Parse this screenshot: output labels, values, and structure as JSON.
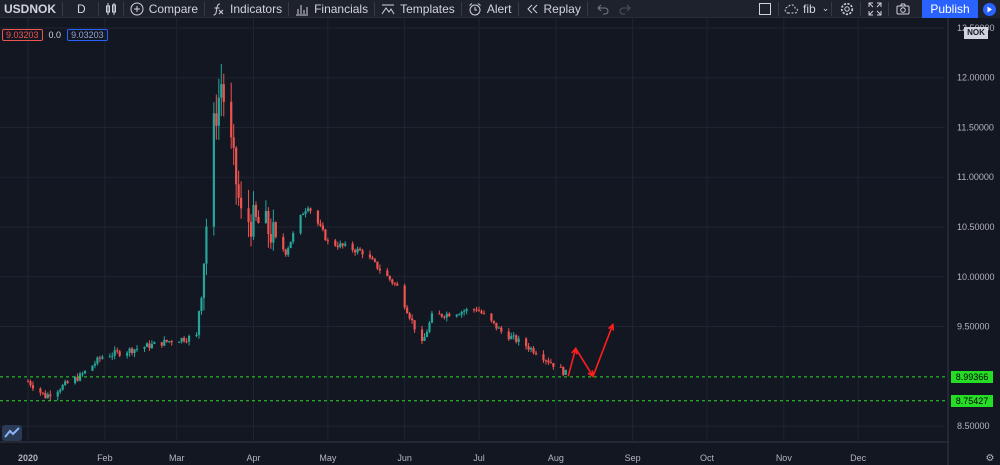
{
  "toolbar": {
    "symbol": "USDNOK",
    "interval": "D",
    "compare": "Compare",
    "indicators": "Indicators",
    "financials": "Financials",
    "templates": "Templates",
    "alert": "Alert",
    "replay": "Replay",
    "layout_name": "fib",
    "publish": "Publish"
  },
  "legend": {
    "last_price": "9.03203",
    "change": "0.0",
    "indicator_value": "9.03203"
  },
  "colors": {
    "up": "#26a69a",
    "down": "#ef5350",
    "level_line": "#26dd26",
    "arrows": "#ff1e1e",
    "accent": "#2962ff"
  },
  "icons": {
    "candles": "candlestick-icon",
    "compare": "plus-circle-icon",
    "indicators": "function-icon",
    "financials": "bar-chart-icon",
    "templates": "templates-icon",
    "alert": "alarm-clock-icon",
    "replay": "rewind-icon",
    "undo": "undo-icon",
    "redo": "redo-icon",
    "layout": "square-icon",
    "cloud": "cloud-icon",
    "settings": "gear-icon",
    "fullscreen": "fullscreen-icon",
    "snapshot": "camera-icon",
    "publish_arrow": "play-circle-icon",
    "axis_settings": "gear-icon",
    "logo": "tradingview-logo-icon"
  },
  "chart_data": {
    "type": "candlestick",
    "currency": "NOK",
    "ylim": [
      8.35,
      12.6
    ],
    "y_ticks": [
      "12.50000",
      "12.00000",
      "11.50000",
      "11.00000",
      "10.50000",
      "10.00000",
      "9.50000",
      "8.50000"
    ],
    "x_ticks": [
      "2020",
      "Feb",
      "Mar",
      "Apr",
      "May",
      "Jun",
      "Jul",
      "Aug",
      "Sep",
      "Oct",
      "Nov",
      "Dec"
    ],
    "horizontal_levels": [
      {
        "label": "8.99366",
        "value": 8.99366
      },
      {
        "label": "8.75427",
        "value": 8.75427
      }
    ],
    "key_points": [
      {
        "date": "2020-01-01",
        "close": 8.95
      },
      {
        "date": "2020-01-08",
        "close": 8.8
      },
      {
        "date": "2020-01-22",
        "close": 9.0
      },
      {
        "date": "2020-01-31",
        "close": 9.2
      },
      {
        "date": "2020-02-14",
        "close": 9.28
      },
      {
        "date": "2020-02-28",
        "close": 9.36
      },
      {
        "date": "2020-03-09",
        "close": 9.4
      },
      {
        "date": "2020-03-12",
        "close": 10.2
      },
      {
        "date": "2020-03-16",
        "close": 11.5
      },
      {
        "date": "2020-03-19",
        "close": 11.95
      },
      {
        "date": "2020-03-23",
        "close": 11.3
      },
      {
        "date": "2020-03-27",
        "close": 10.6
      },
      {
        "date": "2020-04-06",
        "close": 10.5
      },
      {
        "date": "2020-04-14",
        "close": 10.25
      },
      {
        "date": "2020-04-21",
        "close": 10.65
      },
      {
        "date": "2020-04-23",
        "close": 10.72
      },
      {
        "date": "2020-05-01",
        "close": 10.35
      },
      {
        "date": "2020-05-15",
        "close": 10.25
      },
      {
        "date": "2020-05-29",
        "close": 9.9
      },
      {
        "date": "2020-06-08",
        "close": 9.32
      },
      {
        "date": "2020-06-12",
        "close": 9.6
      },
      {
        "date": "2020-06-30",
        "close": 9.68
      },
      {
        "date": "2020-07-10",
        "close": 9.45
      },
      {
        "date": "2020-07-24",
        "close": 9.25
      },
      {
        "date": "2020-08-05",
        "close": 9.03
      }
    ],
    "projection_arrows": [
      [
        {
          "date": "2020-08-06",
          "value": 9.0
        },
        {
          "date": "2020-08-09",
          "value": 9.28
        },
        {
          "date": "2020-08-16",
          "value": 9.0
        },
        {
          "date": "2020-08-24",
          "value": 9.52
        }
      ]
    ],
    "grid": true
  }
}
